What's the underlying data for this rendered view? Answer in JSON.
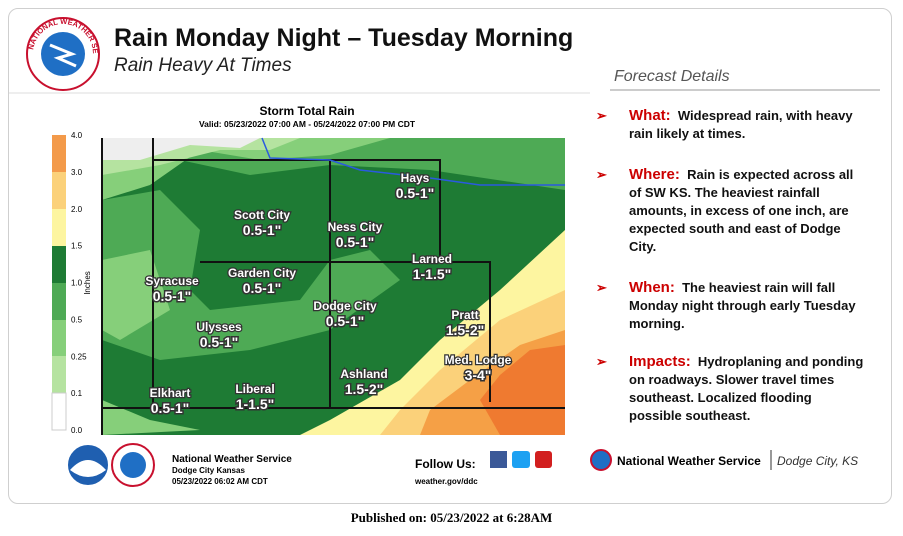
{
  "header": {
    "title": "Rain Monday Night – Tuesday Morning",
    "subtitle": "Rain Heavy At Times",
    "logo": "NATIONAL WEATHER SERVICE"
  },
  "map": {
    "title": "Storm Total Rain",
    "valid": "Valid: 05/23/2022 07:00 AM - 05/24/2022 07:00 PM CDT",
    "legend": {
      "label": "Inches",
      "ticks": [
        "4.0",
        "3.0",
        "2.0",
        "1.5",
        "1.0",
        "0.5",
        "0.25",
        "0.1",
        "0.0"
      ]
    },
    "places": [
      {
        "name": "Hays",
        "amount": "0.5-1\""
      },
      {
        "name": "Scott City",
        "amount": "0.5-1\""
      },
      {
        "name": "Ness City",
        "amount": "0.5-1\""
      },
      {
        "name": "Larned",
        "amount": "1-1.5\""
      },
      {
        "name": "Syracuse",
        "amount": "0.5-1\""
      },
      {
        "name": "Garden City",
        "amount": "0.5-1\""
      },
      {
        "name": "Dodge City",
        "amount": "0.5-1\""
      },
      {
        "name": "Pratt",
        "amount": "1.5-2\""
      },
      {
        "name": "Ulysses",
        "amount": "0.5-1\""
      },
      {
        "name": "Med. Lodge",
        "amount": "3-4\""
      },
      {
        "name": "Elkhart",
        "amount": "0.5-1\""
      },
      {
        "name": "Liberal",
        "amount": "1-1.5\""
      },
      {
        "name": "Ashland",
        "amount": "1.5-2\""
      }
    ],
    "footer": {
      "org": "National Weather Service",
      "office": "Dodge City Kansas",
      "issued": "05/23/2022 06:02 AM CDT",
      "follow": "Follow Us:",
      "url": "weather.gov/ddc"
    }
  },
  "details": {
    "heading": "Forecast Details",
    "items": [
      {
        "label": "What:",
        "text": "Widespread rain, with heavy rain likely at times."
      },
      {
        "label": "Where:",
        "text": "Rain is expected across all of SW KS.  The heaviest rainfall amounts, in excess of one inch, are expected south and east of Dodge City."
      },
      {
        "label": "When:",
        "text": "The heaviest rain will fall Monday night through early Tuesday morning."
      },
      {
        "label": "Impacts:",
        "text": "Hydroplaning and ponding on roadways.  Slower travel times southeast.  Localized flooding possible southeast."
      }
    ],
    "org": "National Weather Service",
    "office": "Dodge City, KS"
  },
  "published": "Published on: 05/23/2022 at 6:28AM"
}
